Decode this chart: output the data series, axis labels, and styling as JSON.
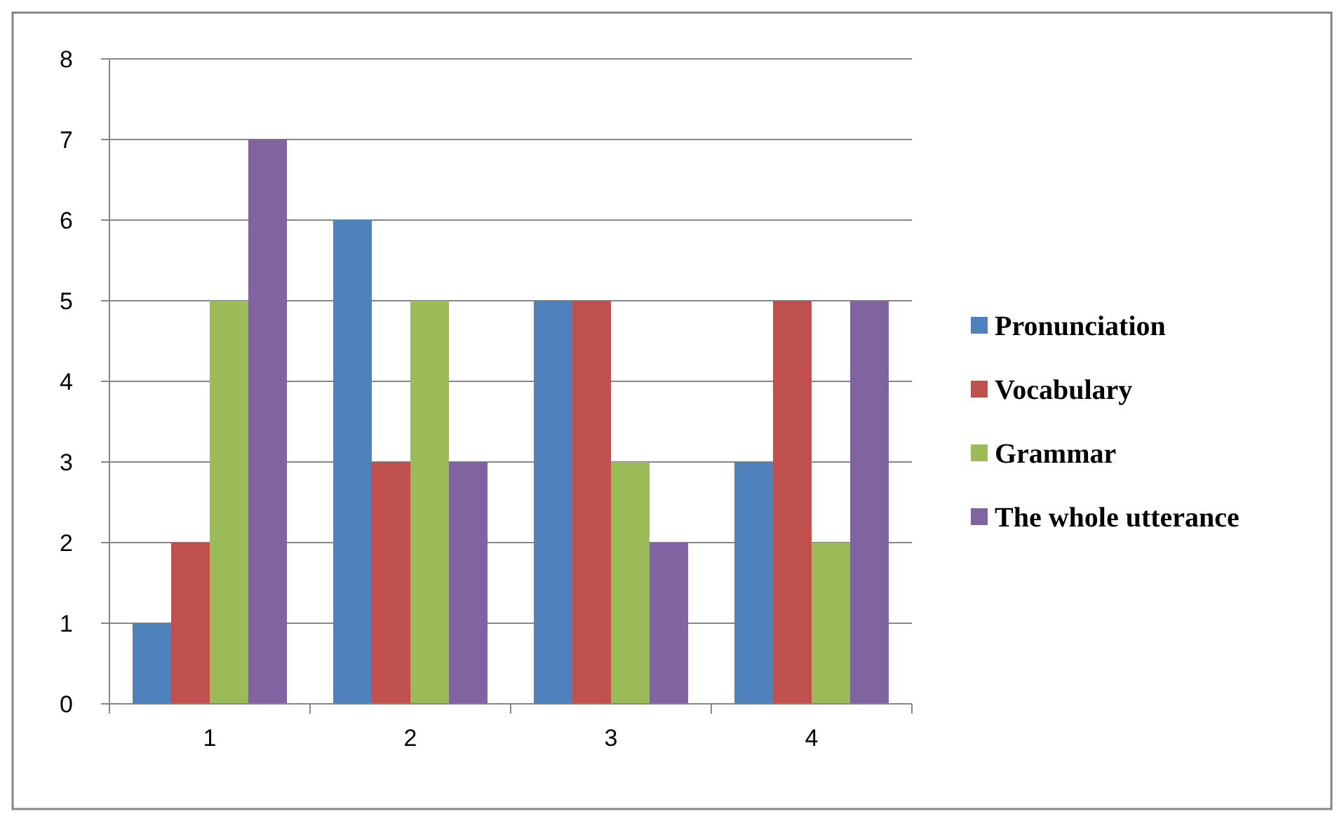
{
  "chart_data": {
    "type": "bar",
    "categories": [
      "1",
      "2",
      "3",
      "4"
    ],
    "series": [
      {
        "name": "Pronunciation",
        "color": "#4f81bd",
        "values": [
          1,
          6,
          5,
          3
        ]
      },
      {
        "name": "Vocabulary",
        "color": "#c0504d",
        "values": [
          2,
          3,
          5,
          5
        ]
      },
      {
        "name": "Grammar",
        "color": "#9bbb59",
        "values": [
          5,
          5,
          3,
          2
        ]
      },
      {
        "name": "The whole utterance",
        "color": "#8064a2",
        "values": [
          7,
          3,
          2,
          5
        ]
      }
    ],
    "ylim": [
      0,
      8
    ],
    "yticks": [
      0,
      1,
      2,
      3,
      4,
      5,
      6,
      7,
      8
    ],
    "grid": "y",
    "legend": "right"
  }
}
